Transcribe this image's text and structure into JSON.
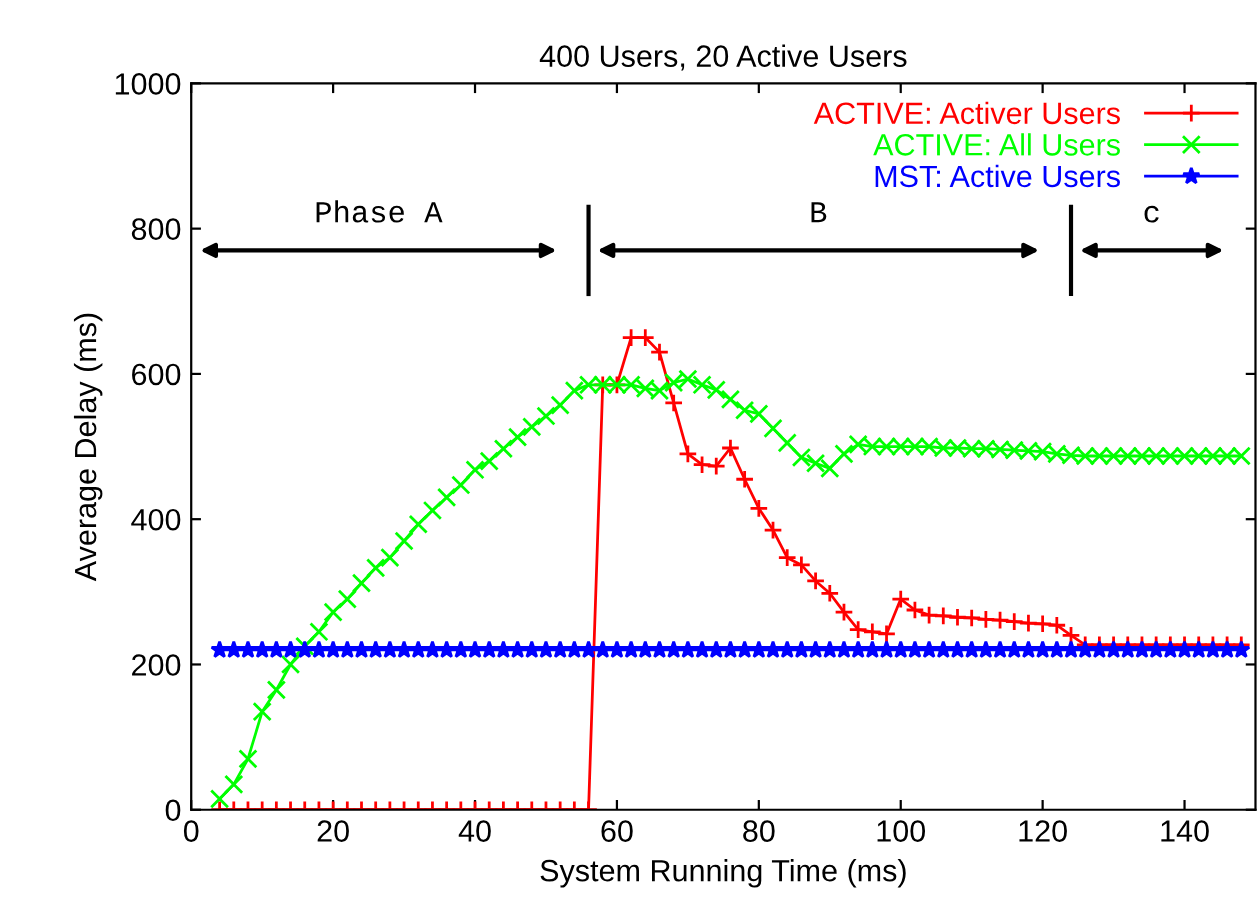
{
  "chart_data": {
    "type": "line",
    "title": "400 Users, 20 Active Users",
    "xlabel": "System Running Time (ms)",
    "ylabel": "Average Delay (ms)",
    "xlim": [
      0,
      150
    ],
    "xticks": [
      0,
      20,
      40,
      60,
      80,
      100,
      120,
      140
    ],
    "ylim": [
      0,
      1000
    ],
    "yticks": [
      0,
      200,
      400,
      600,
      800,
      1000
    ],
    "grid": false,
    "legend": "top right",
    "x": [
      4,
      6,
      8,
      10,
      12,
      14,
      16,
      18,
      20,
      22,
      24,
      26,
      28,
      30,
      32,
      34,
      36,
      38,
      40,
      42,
      44,
      46,
      48,
      50,
      52,
      54,
      56,
      58,
      60,
      62,
      64,
      66,
      68,
      70,
      72,
      74,
      76,
      78,
      80,
      82,
      84,
      86,
      88,
      90,
      92,
      94,
      96,
      98,
      100,
      102,
      104,
      106,
      108,
      110,
      112,
      114,
      116,
      118,
      120,
      122,
      124,
      126,
      128,
      130,
      132,
      134,
      136,
      138,
      140,
      142,
      144,
      146,
      148
    ],
    "series": [
      {
        "name": "ACTIVE: Activer Users",
        "color": "#ff0000",
        "marker": "plus",
        "values": [
          0,
          0,
          0,
          0,
          0,
          0,
          0,
          0,
          0,
          0,
          0,
          0,
          0,
          0,
          0,
          0,
          0,
          0,
          0,
          0,
          0,
          0,
          0,
          0,
          0,
          0,
          0,
          585,
          585,
          650,
          650,
          630,
          560,
          490,
          475,
          473,
          498,
          455,
          415,
          385,
          347,
          337,
          315,
          298,
          272,
          248,
          245,
          242,
          290,
          275,
          268,
          267,
          265,
          264,
          262,
          261,
          259,
          257,
          256,
          254,
          240,
          227,
          227,
          227,
          227,
          227,
          227,
          227,
          227,
          227,
          227,
          227,
          227
        ]
      },
      {
        "name": "ACTIVE: All Users",
        "color": "#00ff00",
        "marker": "cross",
        "values": [
          15,
          35,
          70,
          135,
          165,
          200,
          225,
          245,
          272,
          290,
          312,
          333,
          347,
          370,
          393,
          412,
          430,
          447,
          468,
          480,
          497,
          513,
          527,
          542,
          557,
          577,
          585,
          585,
          585,
          585,
          580,
          577,
          588,
          593,
          585,
          578,
          565,
          550,
          545,
          525,
          505,
          485,
          477,
          470,
          490,
          503,
          500,
          500,
          500,
          500,
          500,
          498,
          498,
          497,
          497,
          496,
          495,
          494,
          493,
          490,
          488,
          487,
          487,
          487,
          487,
          487,
          487,
          487,
          487,
          487,
          487,
          487,
          487
        ]
      },
      {
        "name": "MST: Active Users",
        "color": "#0000ff",
        "marker": "star",
        "values": [
          220,
          220,
          220,
          220,
          220,
          220,
          220,
          220,
          220,
          220,
          220,
          220,
          220,
          220,
          220,
          220,
          220,
          220,
          220,
          220,
          220,
          220,
          220,
          220,
          220,
          220,
          220,
          220,
          220,
          220,
          220,
          220,
          220,
          220,
          220,
          220,
          220,
          220,
          220,
          220,
          220,
          220,
          220,
          220,
          220,
          220,
          220,
          220,
          220,
          220,
          220,
          220,
          220,
          220,
          220,
          220,
          220,
          220,
          220,
          220,
          220,
          220,
          220,
          220,
          220,
          220,
          220,
          220,
          220,
          220,
          220,
          220,
          220
        ]
      }
    ],
    "ref_lines": [
      {
        "axis": "x",
        "value": 56,
        "color": "#000000"
      },
      {
        "axis": "x",
        "value": 124,
        "color": "#000000"
      }
    ],
    "annotations": [
      "Phase A",
      "B",
      "c"
    ]
  }
}
